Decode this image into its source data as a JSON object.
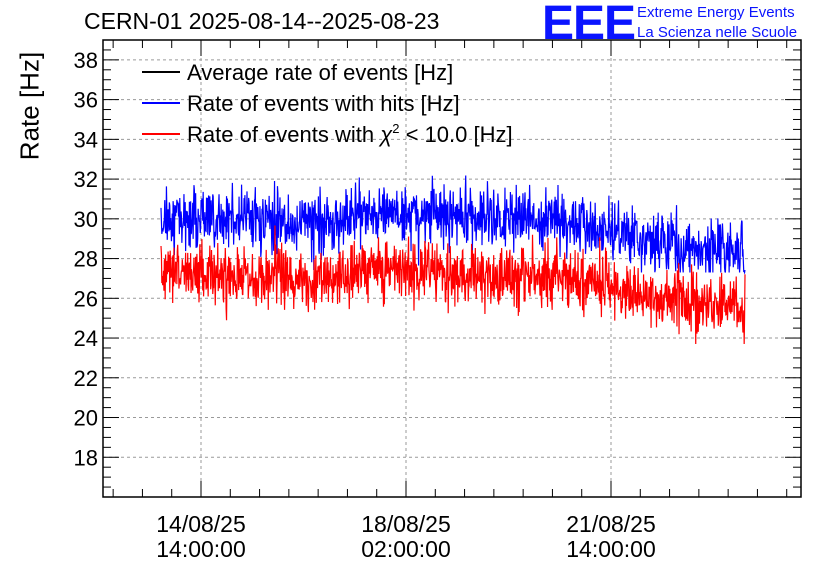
{
  "header": {
    "title": "CERN-01 2025-08-14--2025-08-23",
    "logo_text": "EEE",
    "logo_line1": "Extreme Energy Events",
    "logo_line2": "La Scienza nelle Scuole",
    "brand_color": "#0a14ff"
  },
  "chart_data": {
    "type": "line",
    "ylabel": "Rate [Hz]",
    "xlabel": "",
    "ylim": [
      16,
      39
    ],
    "yticks": [
      18,
      20,
      22,
      24,
      26,
      28,
      30,
      32,
      34,
      36,
      38
    ],
    "xticks": [
      {
        "date": "14/08/25",
        "time": "14:00:00"
      },
      {
        "date": "18/08/25",
        "time": "02:00:00"
      },
      {
        "date": "21/08/25",
        "time": "14:00:00"
      }
    ],
    "grid": true,
    "legend_position": "top-left",
    "series": [
      {
        "name": "Average rate of events [Hz]",
        "color": "#000000",
        "values": []
      },
      {
        "name": "Rate of events with hits [Hz]",
        "color": "#0000ff",
        "trend": [
          30.0,
          30.2,
          30.1,
          29.9,
          29.8,
          29.9,
          30.3,
          30.4,
          30.2,
          30.1,
          30.0,
          30.0,
          29.8,
          29.5,
          29.0,
          28.7,
          28.5,
          28.4
        ],
        "range": [
          27.3,
          32.8
        ]
      },
      {
        "name_prefix": "Rate of events with ",
        "name_symbol": "χ",
        "name_sup": "2",
        "name_suffix": " < 10.0 [Hz]",
        "color": "#ff0000",
        "trend": [
          27.1,
          27.3,
          27.2,
          27.1,
          27.0,
          27.1,
          27.4,
          27.5,
          27.3,
          27.2,
          27.1,
          27.0,
          26.9,
          26.6,
          26.1,
          25.9,
          25.7,
          25.6
        ],
        "range": [
          23.7,
          29.8
        ]
      }
    ]
  }
}
